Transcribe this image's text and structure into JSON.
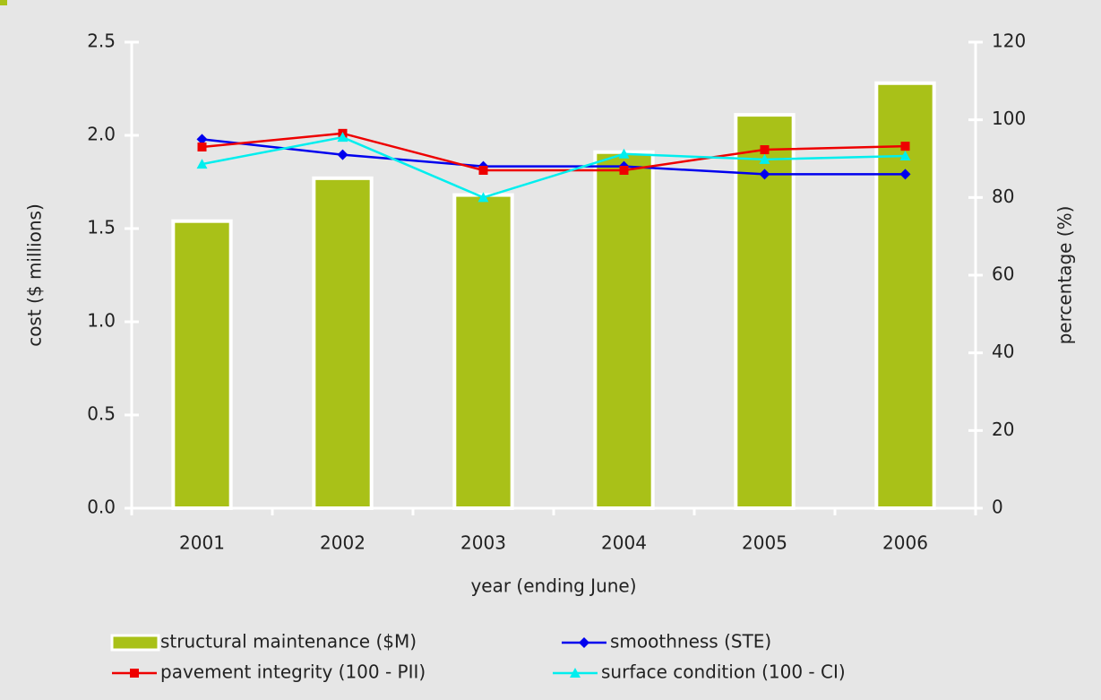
{
  "chart_data": {
    "type": "bar-line",
    "x_label": "year (ending June)",
    "y_label": "cost ($ millions)",
    "y2_label": "percentage (%)",
    "categories": [
      "2001",
      "2002",
      "2003",
      "2004",
      "2005",
      "2006"
    ],
    "ylim": [
      0,
      2.5
    ],
    "yticks": [
      {
        "value": 0,
        "label": "0.0"
      },
      0.5,
      {
        "value": 1,
        "label": "1.0"
      },
      1.5,
      {
        "value": 2,
        "label": "2.0"
      },
      2.5
    ],
    "y2lim": [
      0,
      120
    ],
    "y2ticks": [
      0,
      20,
      40,
      60,
      80,
      100,
      120
    ],
    "series": [
      {
        "name": "structural maintenance ($M)",
        "type": "bar",
        "color": "#a9c118",
        "values": [
          1.54,
          1.77,
          1.68,
          1.91,
          2.11,
          2.28
        ]
      },
      {
        "name": "smoothness (STE)",
        "type": "line",
        "axis": "y2",
        "marker": "diamond",
        "color": "#0000ee",
        "values": [
          95,
          91,
          88,
          88,
          86,
          86
        ]
      },
      {
        "name": "pavement integrity (100 - PII)",
        "type": "line",
        "axis": "y2",
        "marker": "square",
        "color": "#ee0000",
        "values": [
          93,
          96.5,
          87,
          87,
          92.3,
          93.2
        ]
      },
      {
        "name": "surface condition (100 - CI)",
        "type": "line",
        "axis": "y2",
        "marker": "triangle",
        "color": "#00eeee",
        "values": [
          88.6,
          95.5,
          80,
          91.2,
          89.8,
          90.7
        ]
      }
    ]
  }
}
